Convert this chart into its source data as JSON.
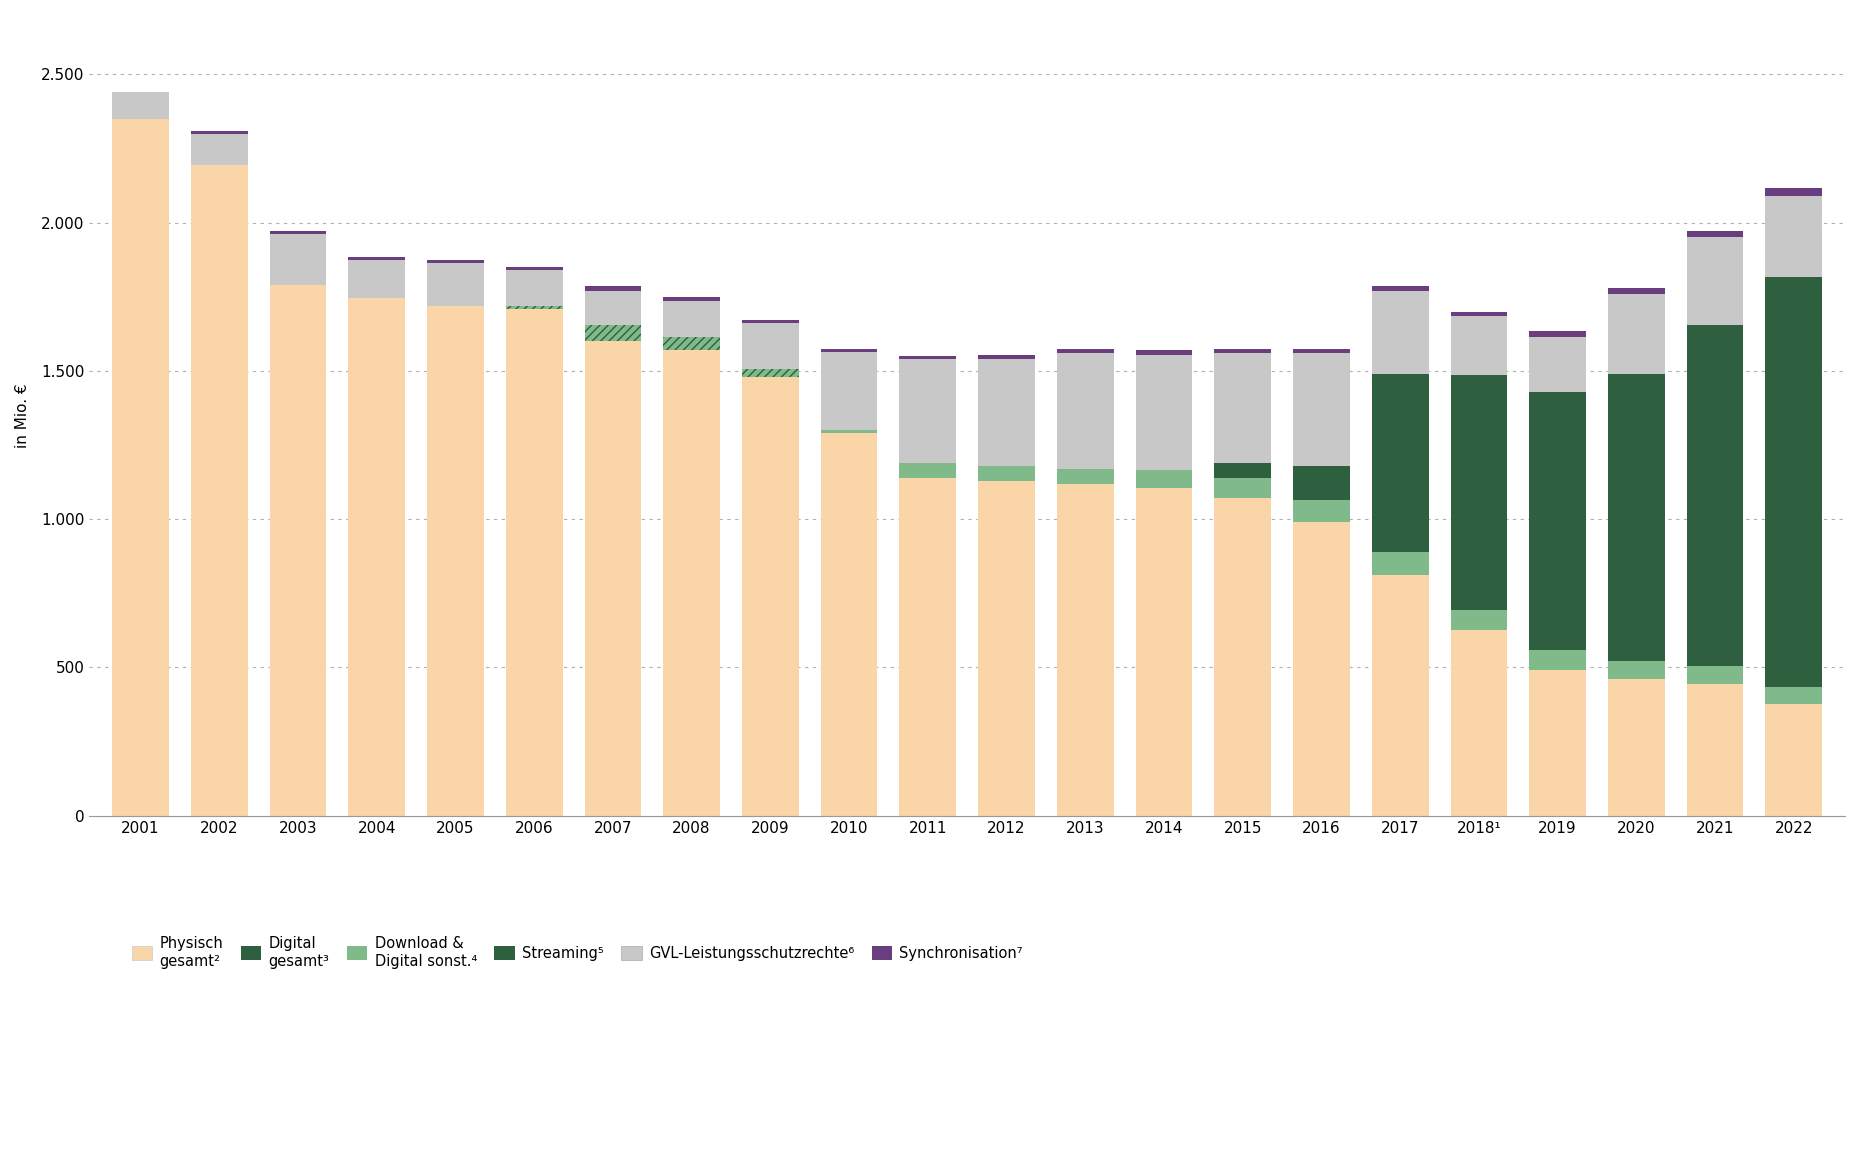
{
  "years": [
    "2001",
    "2002",
    "2003",
    "2004",
    "2005",
    "2006",
    "2007",
    "2008",
    "2009",
    "2010",
    "2011",
    "2012",
    "2013",
    "2014",
    "2015",
    "2016",
    "2017",
    "2018¹",
    "2019",
    "2020",
    "2021",
    "2022"
  ],
  "physisch": [
    2350,
    2195,
    1790,
    1745,
    1720,
    1710,
    1600,
    1570,
    1480,
    1290,
    1140,
    1130,
    1120,
    1105,
    1070,
    990,
    810,
    625,
    490,
    460,
    445,
    375
  ],
  "download_sonst": [
    0,
    0,
    0,
    0,
    0,
    10,
    55,
    45,
    25,
    10,
    50,
    50,
    50,
    60,
    70,
    75,
    80,
    70,
    70,
    60,
    60,
    60
  ],
  "streaming": [
    0,
    0,
    0,
    0,
    0,
    0,
    0,
    0,
    0,
    0,
    0,
    0,
    0,
    0,
    50,
    115,
    600,
    790,
    870,
    970,
    1150,
    1380
  ],
  "gvl": [
    90,
    105,
    170,
    130,
    145,
    120,
    115,
    120,
    155,
    265,
    350,
    360,
    390,
    390,
    370,
    380,
    280,
    200,
    185,
    270,
    295,
    275
  ],
  "sync": [
    0,
    10,
    10,
    10,
    10,
    10,
    15,
    15,
    10,
    10,
    10,
    15,
    15,
    15,
    15,
    15,
    15,
    15,
    20,
    20,
    20,
    25
  ],
  "physisch_color": "#f9d5a7",
  "download_sonst_color": "#80b98a",
  "streaming_color": "#2e5f3e",
  "gvl_color": "#c8c8c8",
  "sync_color": "#6a3d7e",
  "hatch_color": "#2e5f3e",
  "background_color": "#ffffff",
  "grid_color": "#b0b0b0",
  "ylabel": "in Mio. €",
  "ylim": [
    0,
    2700
  ],
  "yticks": [
    0,
    500,
    1000,
    1500,
    2000,
    2500
  ],
  "hatch_years_idx": [
    5,
    6,
    7,
    8
  ],
  "legend_labels": [
    "Physisch\ngesamt²",
    "Digital\ngesamt³",
    "Download &\nDigital sonst.⁴",
    "Streaming⁵",
    "GVL-Leistungsschutzrechte⁶",
    "Synchronisation⁷"
  ]
}
